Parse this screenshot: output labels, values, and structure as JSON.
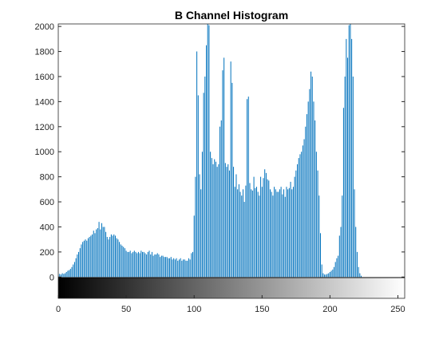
{
  "chart_data": {
    "type": "bar",
    "title": "B Channel Histogram",
    "xlabel": "",
    "ylabel": "",
    "xlim": [
      0,
      255
    ],
    "ylim": [
      -170,
      2020
    ],
    "xticks": [
      0,
      50,
      100,
      150,
      200,
      250
    ],
    "yticks": [
      0,
      200,
      400,
      600,
      800,
      1000,
      1200,
      1400,
      1600,
      1800,
      2000
    ],
    "grid": false,
    "bar_color": "#0072BD",
    "colorbar": {
      "from": "#000000",
      "to": "#ffffff",
      "range": [
        0,
        255
      ],
      "y_range": [
        -170,
        0
      ]
    },
    "series": [
      {
        "x_start": 0,
        "values": [
          20,
          25,
          20,
          30,
          25,
          30,
          40,
          50,
          55,
          65,
          80,
          100,
          120,
          150,
          180,
          200,
          230,
          260,
          280,
          290,
          300,
          290,
          310,
          320,
          330,
          340,
          370,
          350,
          380,
          390,
          440,
          380,
          430,
          400,
          400,
          360,
          320,
          300,
          320,
          340,
          330,
          340,
          330,
          310,
          300,
          280,
          260,
          250,
          240,
          230,
          210,
          200,
          200,
          210,
          190,
          200,
          210,
          200,
          190,
          200,
          190,
          210,
          200,
          200,
          190,
          180,
          200,
          210,
          180,
          200,
          170,
          180,
          180,
          190,
          180,
          160,
          170,
          170,
          160,
          160,
          160,
          150,
          150,
          160,
          140,
          150,
          140,
          150,
          130,
          140,
          150,
          130,
          140,
          140,
          130,
          130,
          150,
          140,
          190,
          200,
          490,
          800,
          1800,
          1450,
          820,
          700,
          1000,
          1470,
          1600,
          1850,
          2050,
          2010,
          1000,
          950,
          900,
          940,
          920,
          880,
          900,
          1200,
          1250,
          1650,
          1750,
          910,
          880,
          900,
          850,
          1720,
          1550,
          880,
          720,
          820,
          700,
          740,
          680,
          650,
          700,
          600,
          730,
          1420,
          1440,
          750,
          700,
          690,
          800,
          710,
          720,
          680,
          650,
          800,
          720,
          790,
          860,
          830,
          780,
          770,
          700,
          680,
          650,
          720,
          700,
          680,
          680,
          700,
          720,
          660,
          700,
          640,
          720,
          700,
          710,
          760,
          700,
          720,
          800,
          850,
          900,
          950,
          980,
          1000,
          1050,
          1100,
          1200,
          1300,
          1400,
          1500,
          1640,
          1600,
          1400,
          1250,
          1000,
          850,
          650,
          350,
          100,
          30,
          20,
          20,
          25,
          30,
          40,
          50,
          60,
          80,
          120,
          150,
          170,
          330,
          400,
          650,
          1350,
          1600,
          1900,
          1750,
          2010,
          2050,
          1900,
          1600,
          700,
          400,
          200,
          80,
          30,
          10,
          0,
          0,
          0,
          0,
          0,
          0,
          0,
          0,
          0,
          0,
          0,
          0
        ]
      }
    ]
  }
}
